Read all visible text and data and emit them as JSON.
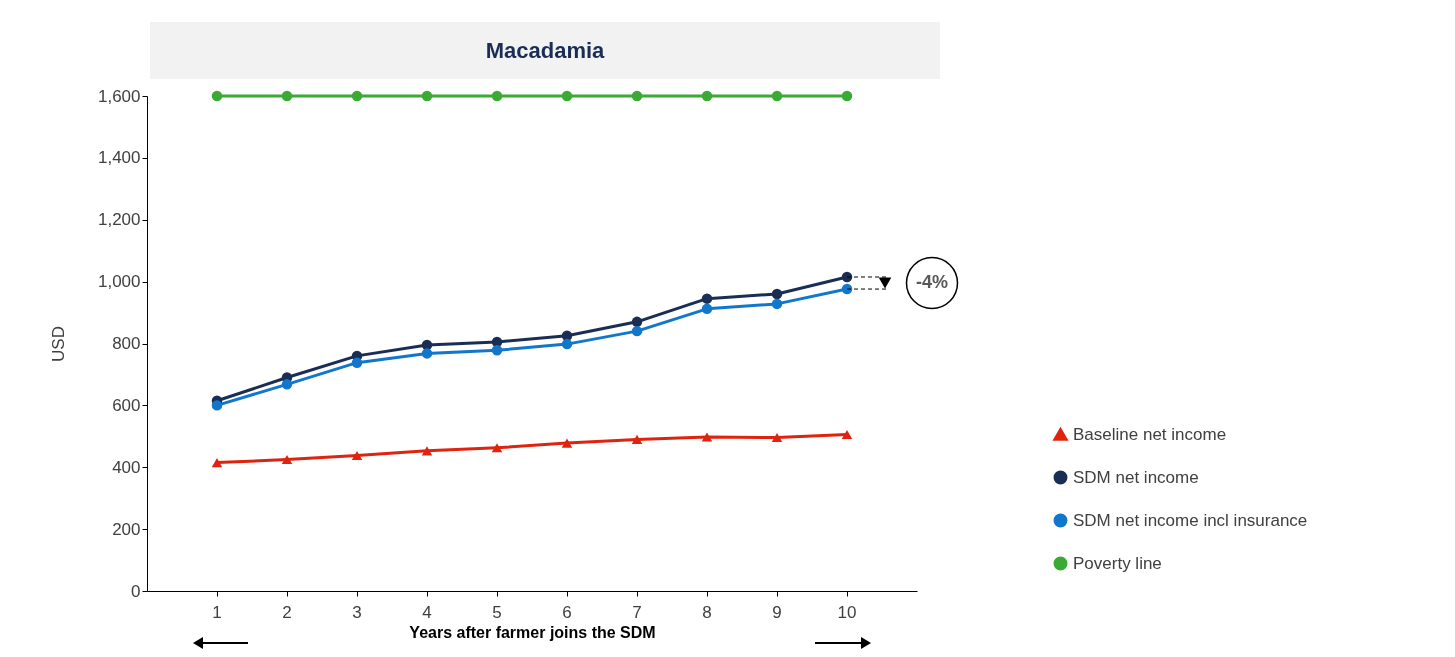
{
  "chart_data": {
    "type": "line",
    "title": "Macadamia",
    "xlabel": "Years after farmer joins the SDM",
    "ylabel": "USD",
    "categories": [
      "1",
      "2",
      "3",
      "4",
      "5",
      "6",
      "7",
      "8",
      "9",
      "10"
    ],
    "series": [
      {
        "name": "Baseline net income",
        "color": "#e0230f",
        "marker": "triangle",
        "values": [
          415,
          425,
          438,
          453,
          463,
          478,
          490,
          498,
          496,
          506
        ]
      },
      {
        "name": "SDM net income",
        "color": "#1a2e55",
        "marker": "circle",
        "values": [
          615,
          690,
          760,
          795,
          805,
          825,
          870,
          945,
          960,
          1015
        ]
      },
      {
        "name": "SDM net income incl insurance",
        "color": "#1177cc",
        "marker": "circle",
        "values": [
          600,
          668,
          738,
          768,
          778,
          798,
          840,
          912,
          928,
          976
        ]
      },
      {
        "name": "Poverty line",
        "color": "#3aaa35",
        "marker": "circle",
        "values": [
          1600,
          1600,
          1600,
          1600,
          1600,
          1600,
          1600,
          1600,
          1600,
          1600
        ]
      }
    ],
    "ylim": [
      0,
      1600
    ],
    "yticks": [
      0,
      200,
      400,
      600,
      800,
      {
        "value": 1000,
        "label": "1,000"
      },
      {
        "value": 1200,
        "label": "1,200"
      },
      {
        "value": 1400,
        "label": "1,400"
      },
      {
        "value": 1600,
        "label": "1,600"
      }
    ],
    "grid": false,
    "legend": "right",
    "annotations": [
      "-4%"
    ]
  }
}
